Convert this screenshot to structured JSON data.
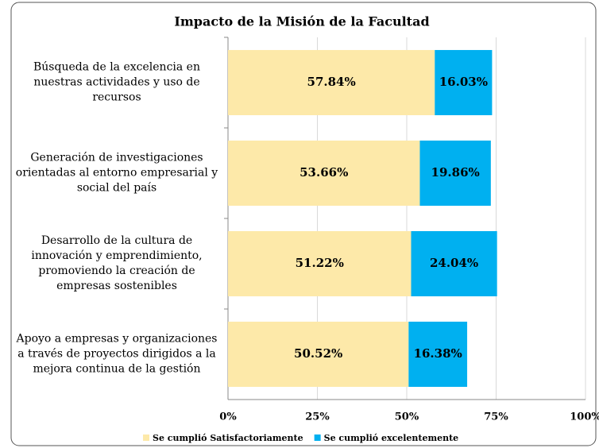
{
  "chart_data": {
    "type": "hbar_stacked",
    "title": "Impacto de la Misión de la Facultad",
    "categories": [
      "Búsqueda de la excelencia en nuestras actividades y uso de recursos",
      "Generación de investigaciones orientadas al entorno empresarial y social del país",
      "Desarrollo de la cultura de innovación y emprendimiento, promoviendo la creación de empresas sostenibles",
      "Apoyo a empresas y organizaciones a través de proyectos dirigidos a la mejora continua de la gestión"
    ],
    "series": [
      {
        "name": "Se cumplió Satisfactoriamente",
        "color": "#fde9a9",
        "values": [
          57.84,
          53.66,
          51.22,
          50.52
        ],
        "value_labels": [
          "57.84%",
          "53.66%",
          "51.22%",
          "50.52%"
        ]
      },
      {
        "name": "Se cumplió excelentemente",
        "color": "#00b0f0",
        "values": [
          16.03,
          19.86,
          24.04,
          16.38
        ],
        "value_labels": [
          "16.03%",
          "19.86%",
          "24.04%",
          "16.38%"
        ]
      }
    ],
    "xlim": [
      0,
      100
    ],
    "xticks": [
      {
        "value": 0,
        "label": "0%"
      },
      {
        "value": 25,
        "label": "25%"
      },
      {
        "value": 50,
        "label": "50%"
      },
      {
        "value": 75,
        "label": "75%"
      },
      {
        "value": 100,
        "label": "100%"
      }
    ],
    "grid": true,
    "legend": "bottom"
  }
}
